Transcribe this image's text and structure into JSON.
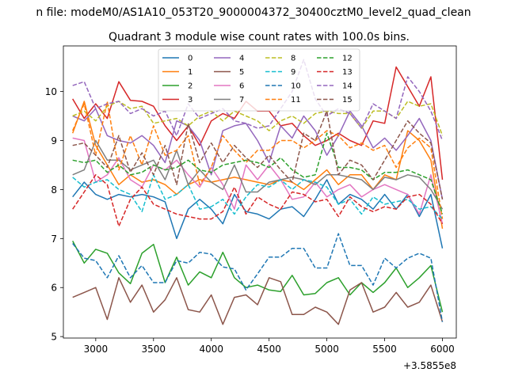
{
  "chart_data": {
    "type": "line",
    "suptitle": "n file: modeM0/AS1A10_053T20_9000004372_30400cztM0_level2_quad_clean",
    "title": "Quadrant 3 module wise count rates with 100.0s bins.",
    "xlabel": "",
    "ylabel": "",
    "x_offset_label": "+3.5855e8",
    "xlim": [
      2720,
      6120
    ],
    "ylim": [
      4.97,
      10.93
    ],
    "xticks": [
      3000,
      3500,
      4000,
      4500,
      5000,
      5500,
      6000
    ],
    "xtick_labels": [
      "3000",
      "3500",
      "4000",
      "4500",
      "5000",
      "5500",
      "6000"
    ],
    "yticks": [
      5,
      6,
      7,
      8,
      9,
      10
    ],
    "ytick_labels": [
      "5",
      "6",
      "7",
      "8",
      "9",
      "10"
    ],
    "x": [
      2800,
      2900,
      3000,
      3100,
      3200,
      3300,
      3400,
      3500,
      3600,
      3700,
      3800,
      3900,
      4000,
      4100,
      4200,
      4300,
      4400,
      4500,
      4600,
      4700,
      4800,
      4900,
      5000,
      5100,
      5200,
      5300,
      5400,
      5500,
      5600,
      5700,
      5800,
      5900,
      6000
    ],
    "legend": {
      "location": "upper-center",
      "columns": 4
    },
    "series": [
      {
        "name": "0",
        "color": "#1f77b4",
        "dash": "solid",
        "values": [
          7.85,
          8.15,
          7.9,
          7.8,
          7.9,
          7.85,
          7.9,
          7.85,
          7.75,
          7.0,
          7.6,
          7.8,
          7.6,
          7.3,
          7.9,
          7.55,
          7.5,
          7.4,
          7.6,
          7.65,
          7.45,
          7.8,
          8.2,
          7.7,
          7.9,
          7.8,
          7.6,
          7.9,
          7.6,
          7.9,
          7.45,
          7.9,
          6.8
        ]
      },
      {
        "name": "1",
        "color": "#ff7f0e",
        "dash": "solid",
        "values": [
          9.15,
          9.8,
          8.9,
          8.5,
          8.1,
          8.3,
          8.15,
          8.2,
          8.1,
          7.9,
          8.1,
          8.2,
          8.15,
          8.2,
          8.25,
          8.2,
          8.15,
          8.1,
          8.2,
          8.15,
          8.0,
          8.2,
          8.4,
          8.1,
          8.3,
          8.3,
          8.0,
          8.3,
          8.2,
          9.2,
          9.0,
          8.6,
          7.2
        ]
      },
      {
        "name": "2",
        "color": "#2ca02c",
        "dash": "solid",
        "values": [
          6.95,
          6.5,
          6.78,
          6.7,
          6.3,
          6.08,
          6.7,
          6.88,
          6.1,
          6.62,
          6.05,
          6.32,
          6.2,
          6.72,
          6.2,
          6.0,
          6.05,
          5.95,
          5.92,
          6.25,
          5.85,
          5.88,
          6.1,
          6.2,
          5.85,
          6.1,
          5.9,
          6.1,
          6.4,
          6.0,
          6.2,
          6.45,
          5.5
        ]
      },
      {
        "name": "3",
        "color": "#d62728",
        "dash": "solid",
        "values": [
          9.85,
          9.45,
          9.75,
          9.45,
          10.2,
          9.82,
          9.8,
          9.7,
          9.3,
          9.0,
          9.3,
          8.9,
          9.4,
          9.55,
          9.45,
          9.8,
          9.6,
          9.6,
          9.3,
          9.35,
          9.1,
          8.9,
          9.0,
          9.15,
          9.0,
          8.9,
          9.4,
          9.35,
          10.5,
          10.1,
          9.7,
          10.3,
          8.2
        ]
      },
      {
        "name": "4",
        "color": "#9467bd",
        "dash": "solid",
        "values": [
          9.5,
          9.4,
          9.65,
          9.1,
          9.0,
          8.95,
          9.1,
          8.9,
          8.55,
          9.4,
          9.3,
          9.0,
          8.3,
          9.2,
          9.3,
          9.35,
          9.0,
          8.55,
          9.3,
          9.05,
          9.5,
          9.2,
          8.7,
          9.1,
          9.6,
          9.3,
          8.85,
          9.05,
          8.8,
          9.1,
          9.45,
          9.0,
          7.8
        ]
      },
      {
        "name": "5",
        "color": "#8c564b",
        "dash": "solid",
        "values": [
          5.8,
          5.9,
          6.0,
          5.35,
          6.2,
          5.7,
          6.05,
          5.5,
          5.75,
          6.2,
          5.55,
          5.5,
          5.85,
          5.25,
          5.8,
          5.85,
          5.65,
          6.2,
          6.12,
          5.45,
          5.45,
          5.6,
          5.5,
          5.25,
          5.95,
          6.1,
          5.5,
          5.6,
          5.9,
          5.6,
          5.7,
          6.05,
          5.3
        ]
      },
      {
        "name": "6",
        "color": "#e377c2",
        "dash": "solid",
        "values": [
          9.05,
          9.0,
          8.15,
          8.3,
          8.65,
          8.2,
          8.05,
          8.5,
          8.4,
          8.6,
          8.3,
          8.05,
          8.45,
          8.1,
          7.6,
          8.5,
          8.2,
          8.5,
          8.2,
          7.8,
          7.85,
          8.15,
          7.85,
          8.0,
          8.1,
          7.85,
          8.0,
          8.1,
          8.0,
          7.9,
          7.5,
          8.3,
          7.3
        ]
      },
      {
        "name": "7",
        "color": "#7f7f7f",
        "dash": "solid",
        "values": [
          8.3,
          8.4,
          9.0,
          8.6,
          8.6,
          8.4,
          8.5,
          8.6,
          8.2,
          8.8,
          8.1,
          8.4,
          8.15,
          8.0,
          8.5,
          7.95,
          7.95,
          8.15,
          8.2,
          8.25,
          8.2,
          8.1,
          8.3,
          8.3,
          8.25,
          8.2,
          8.0,
          8.25,
          8.2,
          8.3,
          8.25,
          8.0,
          7.6
        ]
      },
      {
        "name": "8",
        "color": "#bcbd22",
        "dash": "dashed",
        "values": [
          9.5,
          9.6,
          9.4,
          9.7,
          9.8,
          9.65,
          9.7,
          9.35,
          9.4,
          9.45,
          9.3,
          9.5,
          9.6,
          9.4,
          9.6,
          9.5,
          9.4,
          9.2,
          9.4,
          9.5,
          9.35,
          9.55,
          9.6,
          9.55,
          9.55,
          9.25,
          9.6,
          9.6,
          9.45,
          9.8,
          9.7,
          9.75,
          9.1
        ]
      },
      {
        "name": "9",
        "color": "#17becf",
        "dash": "dashed",
        "values": [
          8.25,
          8.05,
          8.15,
          8.2,
          8.0,
          7.9,
          7.55,
          8.3,
          7.8,
          7.9,
          8.1,
          7.6,
          7.65,
          7.8,
          7.5,
          7.85,
          8.1,
          8.05,
          8.2,
          8.0,
          8.2,
          8.15,
          8.05,
          7.7,
          7.8,
          7.5,
          7.85,
          7.7,
          7.75,
          7.8,
          7.6,
          7.65,
          7.4
        ]
      },
      {
        "name": "10",
        "color": "#1f77b4",
        "dash": "dashed",
        "values": [
          6.9,
          6.6,
          6.55,
          6.2,
          6.65,
          6.2,
          6.45,
          6.1,
          6.1,
          6.55,
          6.5,
          6.72,
          6.68,
          6.42,
          6.38,
          5.95,
          6.28,
          6.62,
          6.62,
          6.8,
          6.8,
          6.4,
          6.4,
          7.1,
          6.45,
          6.45,
          6.05,
          6.6,
          6.4,
          6.6,
          6.7,
          6.6,
          5.3
        ]
      },
      {
        "name": "11",
        "color": "#ff7f0e",
        "dash": "dashed",
        "values": [
          9.2,
          9.75,
          8.7,
          9.8,
          8.4,
          9.1,
          8.5,
          9.3,
          8.7,
          8.8,
          9.1,
          8.1,
          8.45,
          9.1,
          8.8,
          8.55,
          8.8,
          8.8,
          9.0,
          9.0,
          8.85,
          9.0,
          9.2,
          9.1,
          8.85,
          8.95,
          8.8,
          8.9,
          8.45,
          8.85,
          9.05,
          8.85,
          7.4
        ]
      },
      {
        "name": "12",
        "color": "#2ca02c",
        "dash": "dashed",
        "values": [
          8.6,
          8.55,
          8.6,
          8.35,
          8.5,
          8.3,
          8.35,
          8.5,
          8.4,
          8.45,
          8.6,
          8.4,
          8.35,
          8.5,
          8.55,
          8.6,
          8.55,
          8.45,
          8.65,
          8.4,
          8.25,
          8.3,
          9.15,
          8.45,
          8.45,
          8.4,
          8.2,
          8.35,
          8.35,
          8.4,
          8.3,
          8.2,
          7.5
        ]
      },
      {
        "name": "13",
        "color": "#d62728",
        "dash": "dashed",
        "values": [
          7.6,
          7.95,
          8.3,
          8.1,
          7.25,
          7.8,
          8.05,
          7.7,
          7.6,
          7.5,
          7.45,
          7.4,
          7.4,
          7.55,
          8.05,
          7.5,
          7.85,
          7.7,
          7.6,
          7.95,
          7.9,
          7.75,
          7.8,
          7.45,
          7.85,
          7.65,
          7.55,
          7.65,
          7.6,
          7.85,
          7.9,
          7.7,
          7.3
        ]
      },
      {
        "name": "14",
        "color": "#9467bd",
        "dash": "dashed",
        "values": [
          10.12,
          10.2,
          9.65,
          9.75,
          9.8,
          9.55,
          9.65,
          9.5,
          9.6,
          9.1,
          9.75,
          9.45,
          9.55,
          9.65,
          9.4,
          9.35,
          9.25,
          9.3,
          9.65,
          10.0,
          10.65,
          9.85,
          9.5,
          9.65,
          9.55,
          9.25,
          9.75,
          9.6,
          9.45,
          10.3,
          10.0,
          9.6,
          9.0
        ]
      },
      {
        "name": "15",
        "color": "#8c564b",
        "dash": "dashed",
        "values": [
          8.9,
          8.95,
          8.7,
          8.45,
          9.1,
          8.35,
          8.75,
          8.3,
          8.9,
          8.1,
          9.35,
          8.55,
          8.95,
          8.55,
          8.9,
          8.65,
          8.45,
          8.7,
          8.4,
          8.15,
          9.15,
          9.0,
          9.6,
          8.3,
          8.6,
          8.5,
          8.2,
          8.6,
          9.0,
          9.4,
          9.15,
          8.95,
          7.8
        ]
      }
    ]
  }
}
